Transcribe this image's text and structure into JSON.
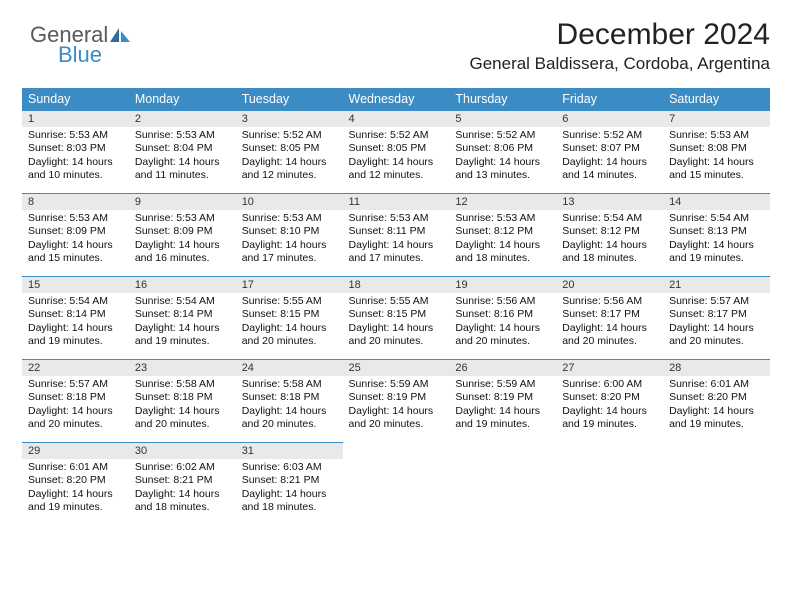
{
  "brand": {
    "part1": "General",
    "part2": "Blue"
  },
  "title": "December 2024",
  "subtitle": "General Baldissera, Cordoba, Argentina",
  "colors": {
    "header_bg": "#3b8bc4",
    "header_text": "#ffffff",
    "daynum_bg": "#e9e9e9",
    "cell_border": "#3b8bc4",
    "page_bg": "#ffffff",
    "text": "#000000",
    "logo_gray": "#5a5a5a",
    "logo_blue": "#3b8bc4"
  },
  "weekdays": [
    "Sunday",
    "Monday",
    "Tuesday",
    "Wednesday",
    "Thursday",
    "Friday",
    "Saturday"
  ],
  "weeks": [
    [
      {
        "n": "1",
        "sr": "5:53 AM",
        "ss": "8:03 PM",
        "dl": "14 hours and 10 minutes."
      },
      {
        "n": "2",
        "sr": "5:53 AM",
        "ss": "8:04 PM",
        "dl": "14 hours and 11 minutes."
      },
      {
        "n": "3",
        "sr": "5:52 AM",
        "ss": "8:05 PM",
        "dl": "14 hours and 12 minutes."
      },
      {
        "n": "4",
        "sr": "5:52 AM",
        "ss": "8:05 PM",
        "dl": "14 hours and 12 minutes."
      },
      {
        "n": "5",
        "sr": "5:52 AM",
        "ss": "8:06 PM",
        "dl": "14 hours and 13 minutes."
      },
      {
        "n": "6",
        "sr": "5:52 AM",
        "ss": "8:07 PM",
        "dl": "14 hours and 14 minutes."
      },
      {
        "n": "7",
        "sr": "5:53 AM",
        "ss": "8:08 PM",
        "dl": "14 hours and 15 minutes."
      }
    ],
    [
      {
        "n": "8",
        "sr": "5:53 AM",
        "ss": "8:09 PM",
        "dl": "14 hours and 15 minutes."
      },
      {
        "n": "9",
        "sr": "5:53 AM",
        "ss": "8:09 PM",
        "dl": "14 hours and 16 minutes."
      },
      {
        "n": "10",
        "sr": "5:53 AM",
        "ss": "8:10 PM",
        "dl": "14 hours and 17 minutes."
      },
      {
        "n": "11",
        "sr": "5:53 AM",
        "ss": "8:11 PM",
        "dl": "14 hours and 17 minutes."
      },
      {
        "n": "12",
        "sr": "5:53 AM",
        "ss": "8:12 PM",
        "dl": "14 hours and 18 minutes."
      },
      {
        "n": "13",
        "sr": "5:54 AM",
        "ss": "8:12 PM",
        "dl": "14 hours and 18 minutes."
      },
      {
        "n": "14",
        "sr": "5:54 AM",
        "ss": "8:13 PM",
        "dl": "14 hours and 19 minutes."
      }
    ],
    [
      {
        "n": "15",
        "sr": "5:54 AM",
        "ss": "8:14 PM",
        "dl": "14 hours and 19 minutes."
      },
      {
        "n": "16",
        "sr": "5:54 AM",
        "ss": "8:14 PM",
        "dl": "14 hours and 19 minutes."
      },
      {
        "n": "17",
        "sr": "5:55 AM",
        "ss": "8:15 PM",
        "dl": "14 hours and 20 minutes."
      },
      {
        "n": "18",
        "sr": "5:55 AM",
        "ss": "8:15 PM",
        "dl": "14 hours and 20 minutes."
      },
      {
        "n": "19",
        "sr": "5:56 AM",
        "ss": "8:16 PM",
        "dl": "14 hours and 20 minutes."
      },
      {
        "n": "20",
        "sr": "5:56 AM",
        "ss": "8:17 PM",
        "dl": "14 hours and 20 minutes."
      },
      {
        "n": "21",
        "sr": "5:57 AM",
        "ss": "8:17 PM",
        "dl": "14 hours and 20 minutes."
      }
    ],
    [
      {
        "n": "22",
        "sr": "5:57 AM",
        "ss": "8:18 PM",
        "dl": "14 hours and 20 minutes."
      },
      {
        "n": "23",
        "sr": "5:58 AM",
        "ss": "8:18 PM",
        "dl": "14 hours and 20 minutes."
      },
      {
        "n": "24",
        "sr": "5:58 AM",
        "ss": "8:18 PM",
        "dl": "14 hours and 20 minutes."
      },
      {
        "n": "25",
        "sr": "5:59 AM",
        "ss": "8:19 PM",
        "dl": "14 hours and 20 minutes."
      },
      {
        "n": "26",
        "sr": "5:59 AM",
        "ss": "8:19 PM",
        "dl": "14 hours and 19 minutes."
      },
      {
        "n": "27",
        "sr": "6:00 AM",
        "ss": "8:20 PM",
        "dl": "14 hours and 19 minutes."
      },
      {
        "n": "28",
        "sr": "6:01 AM",
        "ss": "8:20 PM",
        "dl": "14 hours and 19 minutes."
      }
    ],
    [
      {
        "n": "29",
        "sr": "6:01 AM",
        "ss": "8:20 PM",
        "dl": "14 hours and 19 minutes."
      },
      {
        "n": "30",
        "sr": "6:02 AM",
        "ss": "8:21 PM",
        "dl": "14 hours and 18 minutes."
      },
      {
        "n": "31",
        "sr": "6:03 AM",
        "ss": "8:21 PM",
        "dl": "14 hours and 18 minutes."
      },
      null,
      null,
      null,
      null
    ]
  ],
  "labels": {
    "sunrise": "Sunrise:",
    "sunset": "Sunset:",
    "daylight": "Daylight:"
  }
}
